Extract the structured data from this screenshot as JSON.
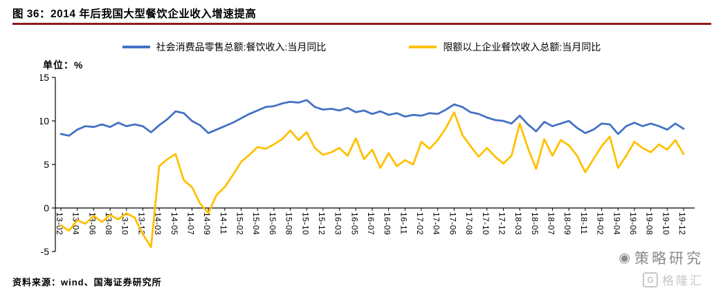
{
  "figure": {
    "title": "图 36：2014 年后我国大型餐饮企业收入增速提高",
    "unit_label": "单位：%",
    "source": "资料来源：wind、国海证券研究所",
    "rule_color": "#8B1A1A"
  },
  "watermark": {
    "brand": "策略研究",
    "logo_letter": "G",
    "logo_text": "格隆汇"
  },
  "chart_data": {
    "type": "line",
    "title": "2014 年后我国大型餐饮企业收入增速提高",
    "xlabel": "",
    "ylabel": "单位：%",
    "ylim": [
      -5,
      15
    ],
    "yticks": [
      15,
      10,
      5,
      0,
      -5
    ],
    "grid": false,
    "legend_position": "top",
    "x_tick_every": 2,
    "x": [
      "13-02",
      "13-03",
      "13-04",
      "13-05",
      "13-06",
      "13-07",
      "13-08",
      "13-09",
      "13-10",
      "13-11",
      "13-12",
      "14-02",
      "14-03",
      "14-04",
      "14-05",
      "14-06",
      "14-07",
      "14-08",
      "14-09",
      "14-10",
      "14-11",
      "14-12",
      "15-02",
      "15-03",
      "15-04",
      "15-05",
      "15-06",
      "15-07",
      "15-08",
      "15-09",
      "15-10",
      "15-11",
      "15-12",
      "16-02",
      "16-03",
      "16-04",
      "16-05",
      "16-06",
      "16-07",
      "16-08",
      "16-09",
      "16-10",
      "16-11",
      "16-12",
      "17-02",
      "17-03",
      "17-04",
      "17-05",
      "17-06",
      "17-07",
      "17-08",
      "17-09",
      "17-10",
      "17-11",
      "17-12",
      "18-02",
      "18-03",
      "18-04",
      "18-05",
      "18-06",
      "18-07",
      "18-08",
      "18-09",
      "18-10",
      "18-11",
      "18-12",
      "19-02",
      "19-03",
      "19-04",
      "19-05",
      "19-06",
      "19-07",
      "19-08",
      "19-09",
      "19-10",
      "19-11",
      "19-12"
    ],
    "series": [
      {
        "name": "社会消费品零售总额:餐饮收入:当月同比",
        "color": "#4472C4",
        "values": [
          8.5,
          8.3,
          9.0,
          9.4,
          9.3,
          9.6,
          9.3,
          9.8,
          9.4,
          9.6,
          9.4,
          8.7,
          9.5,
          10.2,
          11.1,
          10.9,
          10.0,
          9.5,
          8.6,
          9.0,
          9.4,
          9.8,
          10.3,
          10.8,
          11.2,
          11.6,
          11.7,
          12.0,
          12.2,
          12.1,
          12.4,
          11.6,
          11.3,
          11.4,
          11.2,
          11.5,
          11.0,
          11.2,
          10.8,
          11.1,
          10.7,
          10.9,
          10.5,
          10.7,
          10.6,
          10.9,
          10.8,
          11.3,
          11.9,
          11.6,
          11.0,
          10.8,
          10.4,
          10.1,
          10.0,
          9.7,
          10.6,
          9.6,
          8.8,
          9.9,
          9.4,
          9.7,
          10.0,
          9.2,
          8.6,
          9.0,
          9.7,
          9.6,
          8.5,
          9.4,
          9.8,
          9.4,
          9.7,
          9.4,
          9.0,
          9.7,
          9.1
        ]
      },
      {
        "name": "限额以上企业餐饮收入总额:当月同比",
        "color": "#FFC000",
        "values": [
          -2.0,
          -2.6,
          -1.4,
          -1.8,
          -0.9,
          -1.6,
          -0.8,
          -1.3,
          -0.6,
          -1.1,
          -3.0,
          -4.5,
          4.8,
          5.6,
          6.2,
          3.2,
          2.4,
          0.5,
          -0.6,
          1.5,
          2.4,
          3.8,
          5.3,
          6.1,
          7.0,
          6.8,
          7.3,
          7.9,
          8.9,
          7.8,
          8.7,
          6.9,
          6.1,
          6.4,
          6.9,
          6.0,
          8.0,
          5.6,
          6.7,
          4.6,
          6.3,
          4.8,
          5.5,
          5.0,
          7.6,
          6.8,
          7.8,
          9.2,
          11.0,
          8.4,
          7.1,
          5.9,
          6.9,
          5.9,
          5.1,
          6.0,
          9.7,
          6.9,
          4.5,
          7.9,
          6.0,
          7.8,
          7.2,
          6.0,
          4.1,
          5.6,
          7.1,
          8.2,
          4.6,
          6.0,
          7.6,
          6.9,
          6.4,
          7.3,
          6.7,
          7.8,
          6.2
        ]
      }
    ]
  }
}
